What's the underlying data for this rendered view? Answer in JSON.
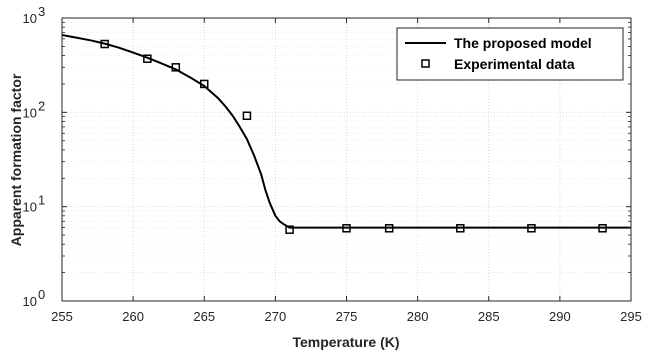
{
  "chart_data": {
    "type": "line",
    "xlabel": "Temperature (K)",
    "ylabel": "Apparent formation factor",
    "xlim": [
      255,
      295
    ],
    "ylim": [
      1,
      1000
    ],
    "y_scale": "log",
    "x_ticks": [
      255,
      260,
      265,
      270,
      275,
      280,
      285,
      290,
      295
    ],
    "x_tick_labels": [
      "255",
      "260",
      "265",
      "270",
      "275",
      "280",
      "285",
      "290",
      "295"
    ],
    "y_ticks": [
      1,
      10,
      100,
      1000
    ],
    "y_tick_labels": [
      {
        "base": "10",
        "exp": "0"
      },
      {
        "base": "10",
        "exp": "1"
      },
      {
        "base": "10",
        "exp": "2"
      },
      {
        "base": "10",
        "exp": "3"
      }
    ],
    "grid": true,
    "minor_grid": true,
    "legend_position": "top-right",
    "series": [
      {
        "name": "The proposed model",
        "style": "line",
        "color": "#000000",
        "x": [
          255,
          256,
          257,
          258,
          259,
          260,
          261,
          262,
          263,
          264,
          265,
          266,
          266.5,
          267,
          267.5,
          268,
          268.5,
          269,
          269.3,
          269.6,
          270,
          270.3,
          270.6,
          271,
          271.5,
          272,
          275,
          280,
          285,
          290,
          295
        ],
        "y": [
          660,
          620,
          580,
          535,
          485,
          430,
          380,
          330,
          285,
          235,
          190,
          140,
          115,
          92,
          70,
          52,
          35,
          22,
          15,
          11,
          8,
          7,
          6.5,
          6.0,
          6.0,
          6.0,
          6.0,
          6.0,
          6.0,
          6.0,
          6.0
        ]
      },
      {
        "name": "Experimental data",
        "style": "marker",
        "marker": "square",
        "color": "#000000",
        "x": [
          258,
          261,
          263,
          265,
          268,
          271,
          275,
          278,
          283,
          288,
          293
        ],
        "y": [
          530,
          370,
          300,
          200,
          92,
          5.7,
          5.9,
          5.9,
          5.9,
          5.9,
          5.9
        ]
      }
    ]
  }
}
